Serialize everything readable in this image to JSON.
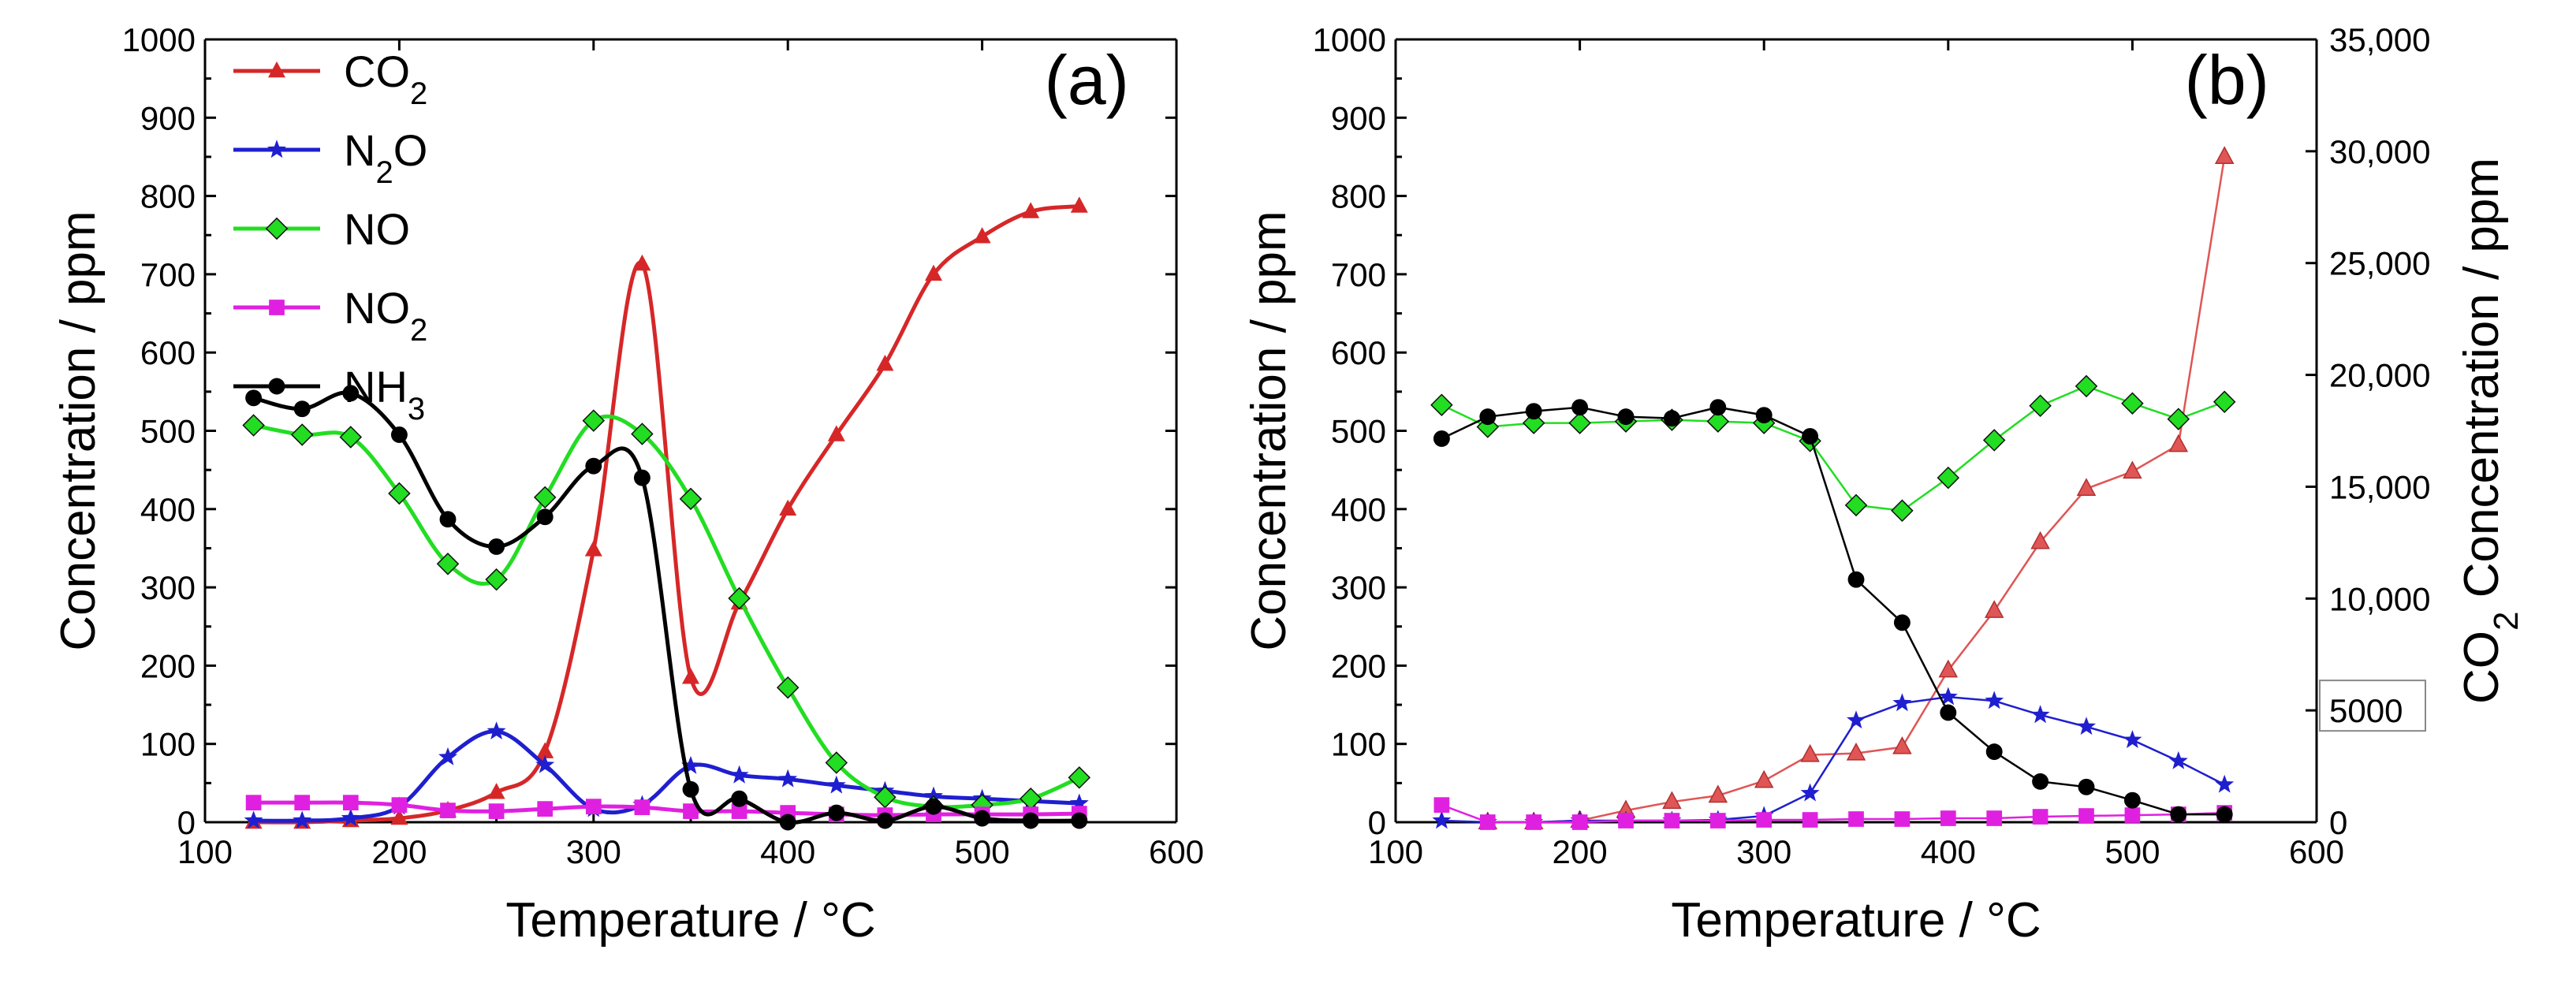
{
  "chart_data": [
    {
      "panel": "(a)",
      "type": "line",
      "xlabel": "Temperature / °C",
      "ylabel": "Concentration / ppm",
      "xlim": [
        100,
        600
      ],
      "ylim": [
        0,
        1000
      ],
      "xticks": [
        100,
        200,
        300,
        400,
        500,
        600
      ],
      "yticks": [
        0,
        100,
        200,
        300,
        400,
        500,
        600,
        700,
        800,
        900,
        1000
      ],
      "smooth": true,
      "legend_position": "top-left",
      "series": [
        {
          "name": "CO2",
          "label_main": "CO",
          "label_sub": "2",
          "color": "#d62728",
          "marker": "triangle",
          "x": [
            125,
            150,
            175,
            200,
            225,
            250,
            275,
            300,
            325,
            350,
            375,
            400,
            425,
            450,
            475,
            500,
            525,
            550
          ],
          "y": [
            0,
            0,
            2,
            5,
            15,
            38,
            90,
            348,
            713,
            185,
            280,
            400,
            495,
            585,
            700,
            748,
            780,
            787
          ]
        },
        {
          "name": "N2O",
          "label_main": "N",
          "label_sub": "2",
          "label_tail": "O",
          "color": "#1f1fcf",
          "marker": "star",
          "x": [
            125,
            150,
            175,
            200,
            225,
            250,
            275,
            300,
            325,
            350,
            375,
            400,
            425,
            450,
            475,
            500,
            525,
            550
          ],
          "y": [
            2,
            2,
            5,
            20,
            83,
            116,
            73,
            17,
            22,
            72,
            60,
            55,
            47,
            40,
            33,
            30,
            27,
            24
          ]
        },
        {
          "name": "NO",
          "label_main": "NO",
          "color": "#22dd22",
          "marker": "diamond",
          "x": [
            125,
            150,
            175,
            200,
            225,
            250,
            275,
            300,
            325,
            350,
            375,
            400,
            425,
            450,
            475,
            500,
            525,
            550
          ],
          "y": [
            507,
            495,
            492,
            420,
            330,
            310,
            415,
            513,
            496,
            413,
            286,
            172,
            76,
            32,
            20,
            22,
            30,
            57
          ]
        },
        {
          "name": "NO2",
          "label_main": "NO",
          "label_sub": "2",
          "color": "#e020e0",
          "marker": "square",
          "x": [
            125,
            150,
            175,
            200,
            225,
            250,
            275,
            300,
            325,
            350,
            375,
            400,
            425,
            450,
            475,
            500,
            525,
            550
          ],
          "y": [
            25,
            25,
            25,
            22,
            15,
            14,
            17,
            20,
            19,
            14,
            14,
            12,
            10,
            9,
            10,
            10,
            10,
            11
          ]
        },
        {
          "name": "NH3",
          "label_main": "NH",
          "label_sub": "3",
          "color": "#000000",
          "marker": "circle",
          "x": [
            125,
            150,
            175,
            200,
            225,
            250,
            275,
            300,
            325,
            350,
            375,
            400,
            425,
            450,
            475,
            500,
            525,
            550
          ],
          "y": [
            542,
            528,
            548,
            495,
            387,
            352,
            390,
            455,
            440,
            42,
            30,
            0,
            12,
            2,
            20,
            5,
            2,
            2
          ]
        }
      ]
    },
    {
      "panel": "(b)",
      "type": "line",
      "xlabel": "Temperature / °C",
      "ylabel": "Concentration / ppm",
      "y2label_main": "CO",
      "y2label_sub": "2",
      "y2label_tail": " Concentration / ppm",
      "xlim": [
        100,
        600
      ],
      "ylim": [
        0,
        1000
      ],
      "y2lim": [
        0,
        35000
      ],
      "xticks": [
        100,
        200,
        300,
        400,
        500,
        600
      ],
      "yticks": [
        0,
        100,
        200,
        300,
        400,
        500,
        600,
        700,
        800,
        900,
        1000
      ],
      "y2ticks": [
        0,
        5000,
        10000,
        15000,
        20000,
        25000,
        30000,
        35000
      ],
      "y2tick_labels": [
        "0",
        "5000",
        "10,000",
        "15,000",
        "20,000",
        "25,000",
        "30,000",
        "35,000"
      ],
      "boxed_y2_tick": "5000",
      "smooth": false,
      "series": [
        {
          "name": "CO2",
          "axis": "right",
          "color": "#e05555",
          "marker": "triangle",
          "x": [
            150,
            175,
            200,
            225,
            250,
            275,
            300,
            325,
            350,
            375,
            400,
            425,
            450,
            475,
            500,
            525,
            550
          ],
          "y": [
            0,
            0,
            70,
            525,
            910,
            1190,
            1850,
            3010,
            3080,
            3360,
            6790,
            9450,
            12530,
            14910,
            15680,
            16870,
            29750
          ]
        },
        {
          "name": "N2O",
          "axis": "left",
          "color": "#1f1fcf",
          "marker": "star",
          "x": [
            125,
            150,
            175,
            200,
            225,
            250,
            275,
            300,
            325,
            350,
            375,
            400,
            425,
            450,
            475,
            500,
            525,
            550
          ],
          "y": [
            2,
            0,
            0,
            2,
            2,
            2,
            3,
            8,
            37,
            130,
            152,
            160,
            155,
            137,
            122,
            105,
            78,
            48
          ]
        },
        {
          "name": "NO",
          "axis": "left",
          "color": "#22dd22",
          "marker": "diamond",
          "x": [
            125,
            150,
            175,
            200,
            225,
            250,
            275,
            300,
            325,
            350,
            375,
            400,
            425,
            450,
            475,
            500,
            525,
            550
          ],
          "y": [
            533,
            505,
            510,
            510,
            512,
            514,
            512,
            510,
            487,
            405,
            398,
            440,
            488,
            532,
            557,
            535,
            515,
            537
          ]
        },
        {
          "name": "NO2",
          "axis": "left",
          "color": "#e020e0",
          "marker": "square",
          "x": [
            125,
            150,
            175,
            200,
            225,
            250,
            275,
            300,
            325,
            350,
            375,
            400,
            425,
            450,
            475,
            500,
            525,
            550
          ],
          "y": [
            22,
            0,
            0,
            0,
            2,
            2,
            2,
            3,
            3,
            4,
            4,
            5,
            5,
            7,
            8,
            9,
            10,
            12
          ]
        },
        {
          "name": "NH3",
          "axis": "left",
          "color": "#000000",
          "marker": "circle",
          "x": [
            125,
            150,
            175,
            200,
            225,
            250,
            275,
            300,
            325,
            350,
            375,
            400,
            425,
            450,
            475,
            500,
            525,
            550
          ],
          "y": [
            490,
            518,
            525,
            530,
            518,
            516,
            530,
            520,
            493,
            310,
            255,
            140,
            90,
            52,
            45,
            28,
            10,
            10
          ]
        }
      ]
    }
  ]
}
